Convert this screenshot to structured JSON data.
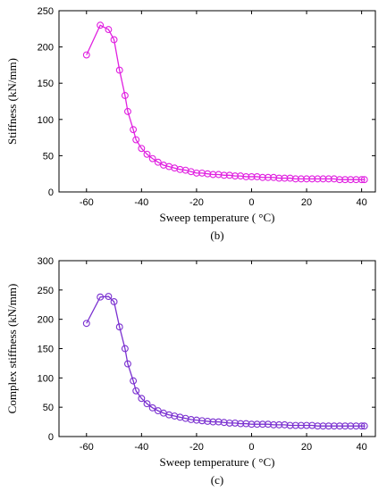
{
  "chart_data": [
    {
      "type": "line",
      "panel_label": "(b)",
      "xlabel": "Sweep temperature ( °C)",
      "ylabel": "Stiffness (kN/mm)",
      "xlim": [
        -70,
        45
      ],
      "ylim": [
        0,
        250
      ],
      "xticks": [
        "-60",
        "-40",
        "-20",
        "0",
        "20",
        "40"
      ],
      "yticks": [
        "0",
        "50",
        "100",
        "150",
        "200",
        "250"
      ],
      "grid": false,
      "color": "#e020e0",
      "marker": "circle",
      "x": [
        -60,
        -55,
        -52,
        -50,
        -48,
        -46,
        -45,
        -43,
        -42,
        -40,
        -38,
        -36,
        -34,
        -32,
        -30,
        -28,
        -26,
        -24,
        -22,
        -20,
        -18,
        -16,
        -14,
        -12,
        -10,
        -8,
        -6,
        -4,
        -2,
        0,
        2,
        4,
        6,
        8,
        10,
        12,
        14,
        16,
        18,
        20,
        22,
        24,
        26,
        28,
        30,
        32,
        34,
        36,
        38,
        40,
        41
      ],
      "y": [
        189,
        230,
        224,
        210,
        168,
        133,
        111,
        86,
        72,
        60,
        52,
        46,
        41,
        37,
        35,
        33,
        31,
        30,
        28,
        26,
        26,
        25,
        24,
        24,
        23,
        23,
        22,
        22,
        21,
        21,
        21,
        20,
        20,
        20,
        19,
        19,
        19,
        18,
        18,
        18,
        18,
        18,
        18,
        18,
        18,
        17,
        17,
        17,
        17,
        17,
        17
      ]
    },
    {
      "type": "line",
      "panel_label": "(c)",
      "xlabel": "Sweep temperature ( °C)",
      "ylabel": "Complex stiffness (kN/mm)",
      "xlim": [
        -70,
        45
      ],
      "ylim": [
        0,
        300
      ],
      "xticks": [
        "-60",
        "-40",
        "-20",
        "0",
        "20",
        "40"
      ],
      "yticks": [
        "0",
        "50",
        "100",
        "150",
        "200",
        "250",
        "300"
      ],
      "grid": false,
      "color": "#7a30d0",
      "marker": "circle",
      "x": [
        -60,
        -55,
        -52,
        -50,
        -48,
        -46,
        -45,
        -43,
        -42,
        -40,
        -38,
        -36,
        -34,
        -32,
        -30,
        -28,
        -26,
        -24,
        -22,
        -20,
        -18,
        -16,
        -14,
        -12,
        -10,
        -8,
        -6,
        -4,
        -2,
        0,
        2,
        4,
        6,
        8,
        10,
        12,
        14,
        16,
        18,
        20,
        22,
        24,
        26,
        28,
        30,
        32,
        34,
        36,
        38,
        40,
        41
      ],
      "y": [
        193,
        238,
        239,
        230,
        187,
        150,
        124,
        95,
        78,
        65,
        56,
        49,
        44,
        40,
        37,
        35,
        33,
        31,
        29,
        28,
        27,
        26,
        25,
        25,
        24,
        23,
        23,
        22,
        22,
        21,
        21,
        21,
        21,
        20,
        20,
        20,
        19,
        19,
        19,
        19,
        19,
        18,
        18,
        18,
        18,
        18,
        18,
        18,
        18,
        18,
        18
      ]
    }
  ]
}
